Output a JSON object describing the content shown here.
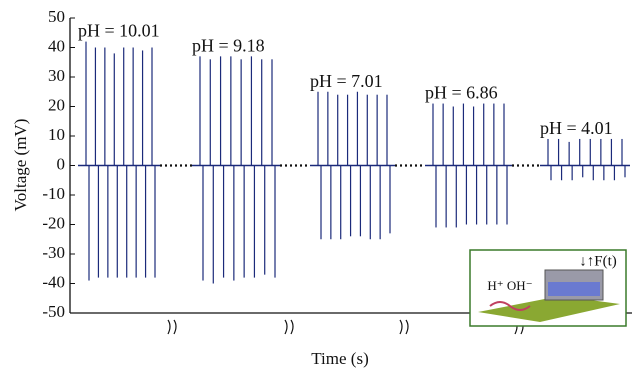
{
  "chart_data": {
    "type": "spike",
    "xlabel": "Time (s)",
    "ylabel": "Voltage (mV)",
    "ylim": [
      -50,
      50
    ],
    "yticks": [
      -50,
      -40,
      -30,
      -20,
      -10,
      0,
      10,
      20,
      30,
      40,
      50
    ],
    "series": [
      {
        "name": "pH = 10.01",
        "color": "#1b2a7a",
        "peaks": [
          42,
          40,
          40,
          38,
          40,
          40,
          39,
          40
        ],
        "troughs": [
          -39,
          -38,
          -38,
          -38,
          -38,
          -38,
          -38,
          -38
        ]
      },
      {
        "name": "pH = 9.18",
        "color": "#1b2a7a",
        "peaks": [
          37,
          36,
          37,
          37,
          36,
          37,
          36,
          36
        ],
        "troughs": [
          -39,
          -40,
          -38,
          -39,
          -38,
          -38,
          -37,
          -38
        ]
      },
      {
        "name": "pH = 7.01",
        "color": "#1b2a7a",
        "peaks": [
          25,
          25,
          24,
          24,
          25,
          24,
          24,
          24
        ],
        "troughs": [
          -25,
          -25,
          -25,
          -24,
          -24,
          -25,
          -25,
          -23
        ]
      },
      {
        "name": "pH = 6.86",
        "color": "#1b2a7a",
        "peaks": [
          21,
          21,
          20,
          21,
          20,
          21,
          21,
          21
        ],
        "troughs": [
          -21,
          -21,
          -21,
          -20,
          -20,
          -20,
          -20,
          -20
        ]
      },
      {
        "name": "pH = 4.01",
        "color": "#1b2a7a",
        "peaks": [
          9,
          9,
          8,
          9,
          9,
          9,
          9,
          9
        ],
        "troughs": [
          -5,
          -5,
          -5,
          -4,
          -5,
          -5,
          -5,
          -4
        ]
      }
    ],
    "label_color": "#e02020",
    "inset": {
      "force_label": "↓↑F(t)",
      "ion_labels": "H⁺ OH⁻"
    }
  }
}
